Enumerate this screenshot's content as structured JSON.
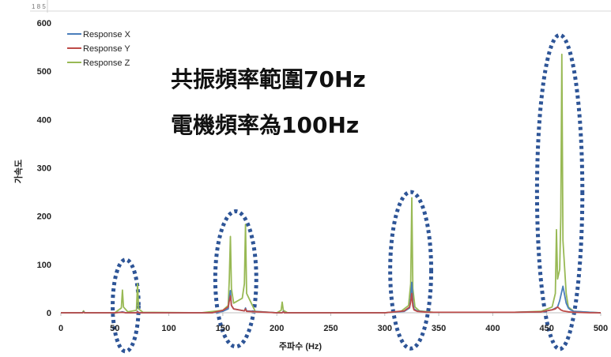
{
  "chart_data": {
    "type": "line",
    "title": "",
    "xlabel": "주파수 (Hz)",
    "ylabel": "가속도",
    "xlim": [
      0,
      500
    ],
    "ylim": [
      0,
      600
    ],
    "xticks": [
      0,
      50,
      100,
      150,
      200,
      250,
      300,
      350,
      400,
      450,
      500
    ],
    "yticks": [
      0,
      100,
      200,
      300,
      400,
      500,
      600
    ],
    "grid": false,
    "legend_position": "top-left",
    "series": [
      {
        "name": "Response X",
        "color": "#4a7ebb",
        "x": [
          0,
          20,
          21,
          22,
          50,
          55,
          57,
          60,
          70,
          71,
          72,
          140,
          150,
          155,
          156,
          157,
          158,
          160,
          170,
          171,
          172,
          200,
          205,
          206,
          207,
          300,
          318,
          323,
          324,
          325,
          326,
          327,
          330,
          340,
          420,
          445,
          455,
          460,
          462,
          465,
          468,
          470,
          472,
          475,
          490,
          500
        ],
        "y": [
          0,
          0,
          2,
          0,
          0,
          1,
          2,
          0,
          0,
          3,
          0,
          0,
          3,
          8,
          30,
          46,
          15,
          8,
          4,
          10,
          4,
          0,
          0,
          3,
          0,
          0,
          3,
          10,
          30,
          63,
          22,
          8,
          4,
          1,
          1,
          2,
          6,
          12,
          25,
          55,
          20,
          10,
          6,
          3,
          1,
          0
        ]
      },
      {
        "name": "Response Y",
        "color": "#be4b48",
        "x": [
          0,
          20,
          21,
          22,
          50,
          57,
          60,
          70,
          71,
          72,
          140,
          150,
          155,
          156,
          157,
          158,
          160,
          170,
          171,
          172,
          200,
          205,
          206,
          207,
          300,
          318,
          323,
          324,
          325,
          326,
          327,
          330,
          340,
          420,
          445,
          455,
          458,
          460,
          463,
          465,
          470,
          475,
          490,
          500
        ],
        "y": [
          0,
          0,
          1,
          0,
          0,
          1,
          0,
          0,
          2,
          0,
          0,
          5,
          12,
          25,
          35,
          15,
          8,
          4,
          8,
          3,
          0,
          0,
          2,
          0,
          0,
          4,
          12,
          22,
          40,
          14,
          6,
          3,
          1,
          1,
          2,
          6,
          8,
          12,
          6,
          4,
          2,
          1,
          0,
          0
        ]
      },
      {
        "name": "Response Z",
        "color": "#98b954",
        "x": [
          0,
          20,
          21,
          22,
          50,
          56,
          57,
          58,
          62,
          70,
          71,
          72,
          76,
          130,
          150,
          155,
          156,
          157,
          158,
          160,
          168,
          170,
          171,
          172,
          180,
          200,
          204,
          205,
          206,
          210,
          300,
          315,
          322,
          324,
          325,
          326,
          328,
          332,
          345,
          420,
          445,
          455,
          458,
          459,
          460,
          462,
          463,
          464,
          465,
          468,
          470,
          475,
          490,
          500
        ],
        "y": [
          0,
          0,
          4,
          0,
          0,
          10,
          47,
          12,
          2,
          5,
          60,
          8,
          1,
          0,
          5,
          15,
          70,
          158,
          50,
          20,
          30,
          60,
          183,
          40,
          3,
          0,
          5,
          22,
          5,
          0,
          0,
          3,
          15,
          60,
          238,
          50,
          12,
          4,
          1,
          1,
          3,
          12,
          40,
          172,
          70,
          90,
          200,
          535,
          150,
          40,
          12,
          3,
          1,
          0
        ]
      }
    ],
    "annotations": [
      "共振頻率範圍70Hz",
      "電機頻率為100Hz"
    ],
    "highlight_color": "#2e5597",
    "top_mark": "1 8 5"
  }
}
